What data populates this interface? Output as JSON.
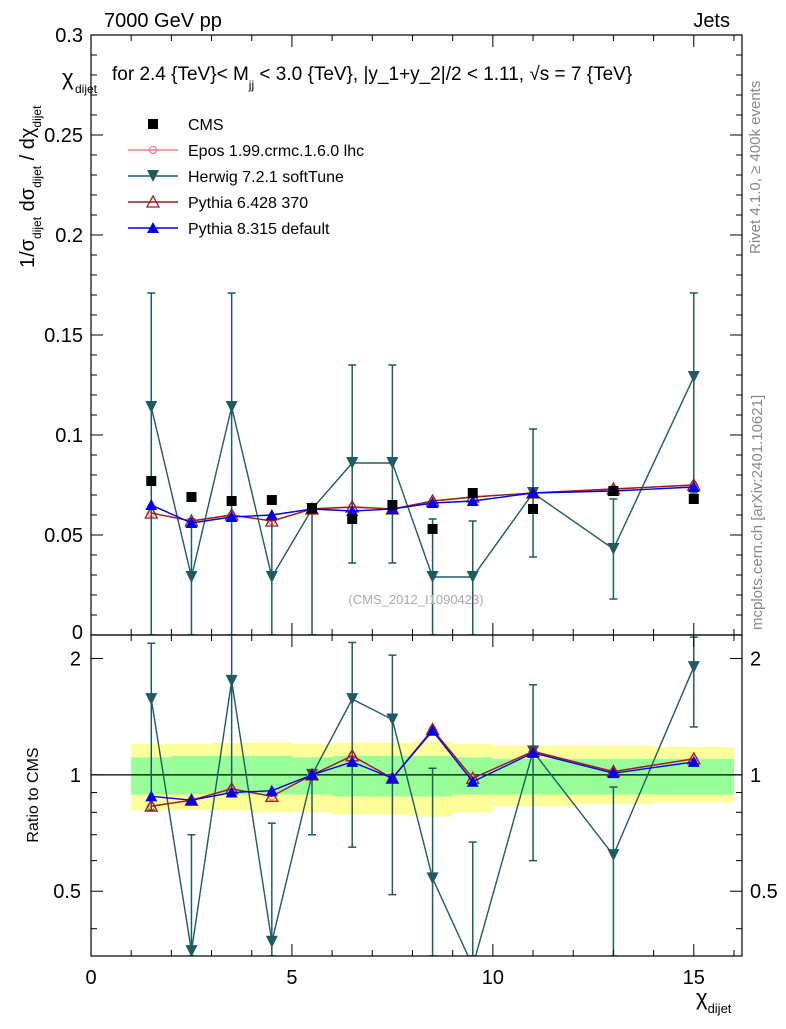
{
  "header": {
    "left": "7000 GeV pp",
    "right": "Jets",
    "title_prefix": "for 2.4 {TeV}< M",
    "title_sub": "jj",
    "title_rest": " < 3.0 {TeV}, |y_1+y_2|/2 < 1.11, ",
    "title_sqrt": "√s",
    "title_end": " = 7 {TeV}"
  },
  "side": {
    "rivet": "Rivet 4.1.0, ≥ 400k events",
    "mcplots": "mcplots.cern.ch [arXiv:2401.10621]"
  },
  "watermark": "(CMS_2012_I1090423)",
  "colors": {
    "cms": "#000000",
    "epos": "#f08080",
    "herwig": "#1f5b63",
    "pythia6": "#9b1c1c",
    "pythia8": "#0000ee",
    "band_inner": "#99ff99",
    "band_outer": "#ffff99"
  },
  "chart_data": [
    {
      "type": "scatter",
      "title": "for 2.4 {TeV}< M_jj < 3.0 {TeV}, |y_1+y_2|/2 < 1.11, √s = 7 {TeV}",
      "ylabel": "1/σ_dijet dσ_dijet / dχ_dijet",
      "ylabel_parts": [
        "1/σ",
        "dijet",
        " dσ",
        "dijet",
        " / dχ",
        "dijet"
      ],
      "corner_label": "χ",
      "corner_label_sub": "dijet",
      "xlim": [
        0,
        16.2
      ],
      "ylim": [
        0,
        0.3
      ],
      "yticks": [
        0.05,
        0.1,
        0.15,
        0.2,
        0.25,
        0.3
      ],
      "ytick_labels": [
        "0.05",
        "0.1",
        "0.15",
        "0.2",
        "0.25",
        "0.3"
      ],
      "bottom_tick_label": "0",
      "x": [
        1.5,
        2.5,
        3.5,
        4.5,
        5.5,
        6.5,
        7.5,
        8.5,
        9.5,
        11,
        13,
        15
      ],
      "legend": [
        "CMS",
        "Epos 1.99.crmc.1.6.0 lhc",
        "Herwig 7.2.1 softTune",
        "Pythia 6.428 370",
        "Pythia 8.315 default"
      ],
      "series": [
        {
          "name": "CMS",
          "values": [
            0.077,
            0.069,
            0.067,
            0.0675,
            0.0635,
            0.058,
            0.065,
            0.053,
            0.071,
            0.063,
            0.072,
            0.068
          ]
        },
        {
          "name": "Epos 1.99.crmc.1.6.0 lhc",
          "values": [
            0.061,
            0.057,
            0.06,
            0.057,
            0.063,
            0.064,
            0.063,
            0.067,
            0.069,
            0.071,
            0.073,
            0.075
          ]
        },
        {
          "name": "Herwig 7.2.1 softTune",
          "values": [
            0.114,
            0.029,
            0.114,
            0.029,
            0.063,
            0.086,
            0.086,
            0.029,
            0.029,
            0.071,
            0.043,
            0.129
          ],
          "err_lo": [
            0.114,
            0.029,
            0.114,
            0.029,
            0.063,
            0.05,
            0.05,
            0.029,
            0.029,
            0.032,
            0.025,
            0.058
          ],
          "err_hi": [
            0.057,
            0.029,
            0.057,
            0.029,
            0.0,
            0.049,
            0.049,
            0.029,
            0.028,
            0.032,
            0.025,
            0.042
          ]
        },
        {
          "name": "Pythia 6.428 370",
          "values": [
            0.061,
            0.057,
            0.06,
            0.057,
            0.063,
            0.064,
            0.063,
            0.067,
            0.069,
            0.071,
            0.073,
            0.075
          ]
        },
        {
          "name": "Pythia 8.315 default",
          "values": [
            0.065,
            0.056,
            0.059,
            0.06,
            0.063,
            0.062,
            0.063,
            0.066,
            0.067,
            0.071,
            0.072,
            0.074
          ]
        }
      ]
    },
    {
      "type": "scatter",
      "ylabel": "Ratio to CMS",
      "xlabel": "χ",
      "xlabel_sub": "dijet",
      "xlim": [
        0,
        16.2
      ],
      "ylim": [
        0.34,
        2.3
      ],
      "xticks": [
        0,
        5,
        10,
        15
      ],
      "xtick_labels": [
        "0",
        "5",
        "10",
        "15"
      ],
      "yticks": [
        0.5,
        1,
        2
      ],
      "ytick_labels": [
        "0.5",
        "1",
        "2"
      ],
      "reference_line": 1,
      "x": [
        1.5,
        2.5,
        3.5,
        4.5,
        5.5,
        6.5,
        7.5,
        8.5,
        9.5,
        11,
        13,
        15
      ],
      "band_edges": [
        1,
        2,
        3,
        4,
        5,
        6,
        7,
        8,
        9,
        10,
        12,
        14,
        16
      ],
      "band_inner_lo": [
        0.89,
        0.89,
        0.89,
        0.89,
        0.89,
        0.88,
        0.88,
        0.88,
        0.89,
        0.89,
        0.89,
        0.89
      ],
      "band_inner_hi": [
        1.11,
        1.12,
        1.12,
        1.12,
        1.11,
        1.12,
        1.12,
        1.12,
        1.11,
        1.1,
        1.1,
        1.1
      ],
      "band_outer_lo": [
        0.81,
        0.81,
        0.81,
        0.8,
        0.8,
        0.79,
        0.79,
        0.78,
        0.8,
        0.83,
        0.84,
        0.85
      ],
      "band_outer_hi": [
        1.2,
        1.2,
        1.21,
        1.21,
        1.2,
        1.21,
        1.21,
        1.22,
        1.2,
        1.19,
        1.19,
        1.18
      ],
      "series": [
        {
          "name": "Epos 1.99.crmc.1.6.0 lhc",
          "values": [
            0.83,
            0.86,
            0.92,
            0.88,
            1.0,
            1.12,
            0.98,
            1.31,
            0.98,
            1.15,
            1.02,
            1.1
          ]
        },
        {
          "name": "Herwig 7.2.1 softTune",
          "values": [
            1.57,
            0.35,
            1.75,
            0.37,
            1.0,
            1.57,
            1.39,
            0.54,
            0.32,
            1.15,
            0.62,
            1.9
          ],
          "err_lo": [
            0.76,
            0.35,
            0.85,
            0.37,
            0.3,
            0.92,
            0.9,
            0.5,
            0.32,
            0.55,
            0.31,
            0.57
          ],
          "err_hi": [
            0.62,
            0.35,
            0.6,
            0.38,
            0.0,
            0.63,
            0.65,
            0.5,
            0.35,
            0.56,
            0.31,
            0.37
          ]
        },
        {
          "name": "Pythia 6.428 370",
          "values": [
            0.83,
            0.86,
            0.92,
            0.88,
            1.0,
            1.12,
            0.98,
            1.31,
            0.98,
            1.15,
            1.02,
            1.1
          ]
        },
        {
          "name": "Pythia 8.315 default",
          "values": [
            0.88,
            0.86,
            0.9,
            0.91,
            1.0,
            1.08,
            0.98,
            1.3,
            0.96,
            1.14,
            1.01,
            1.08
          ]
        }
      ]
    }
  ]
}
